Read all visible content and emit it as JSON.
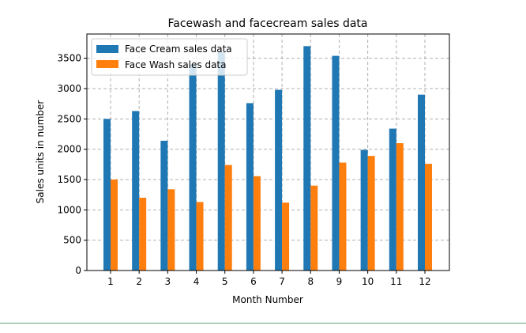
{
  "chart_data": {
    "type": "bar",
    "title": "Facewash and facecream sales data",
    "xlabel": "Month Number",
    "ylabel": "Sales units in number",
    "categories": [
      "1",
      "2",
      "3",
      "4",
      "5",
      "6",
      "7",
      "8",
      "9",
      "10",
      "11",
      "12"
    ],
    "series": [
      {
        "name": "Face Cream sales data",
        "color": "#1f77b4",
        "values": [
          2500,
          2630,
          2140,
          3400,
          3600,
          2760,
          2980,
          3700,
          3540,
          1990,
          2340,
          2900
        ]
      },
      {
        "name": "Face Wash sales data",
        "color": "#ff7f0e",
        "values": [
          1500,
          1200,
          1340,
          1130,
          1740,
          1555,
          1120,
          1400,
          1780,
          1890,
          2100,
          1760
        ]
      }
    ],
    "yticks": [
      0,
      500,
      1000,
      1500,
      2000,
      2500,
      3000,
      3500
    ],
    "ylim": [
      0,
      3900
    ],
    "grid": true,
    "grid_style": "dashed",
    "legend_position": "upper-left"
  }
}
